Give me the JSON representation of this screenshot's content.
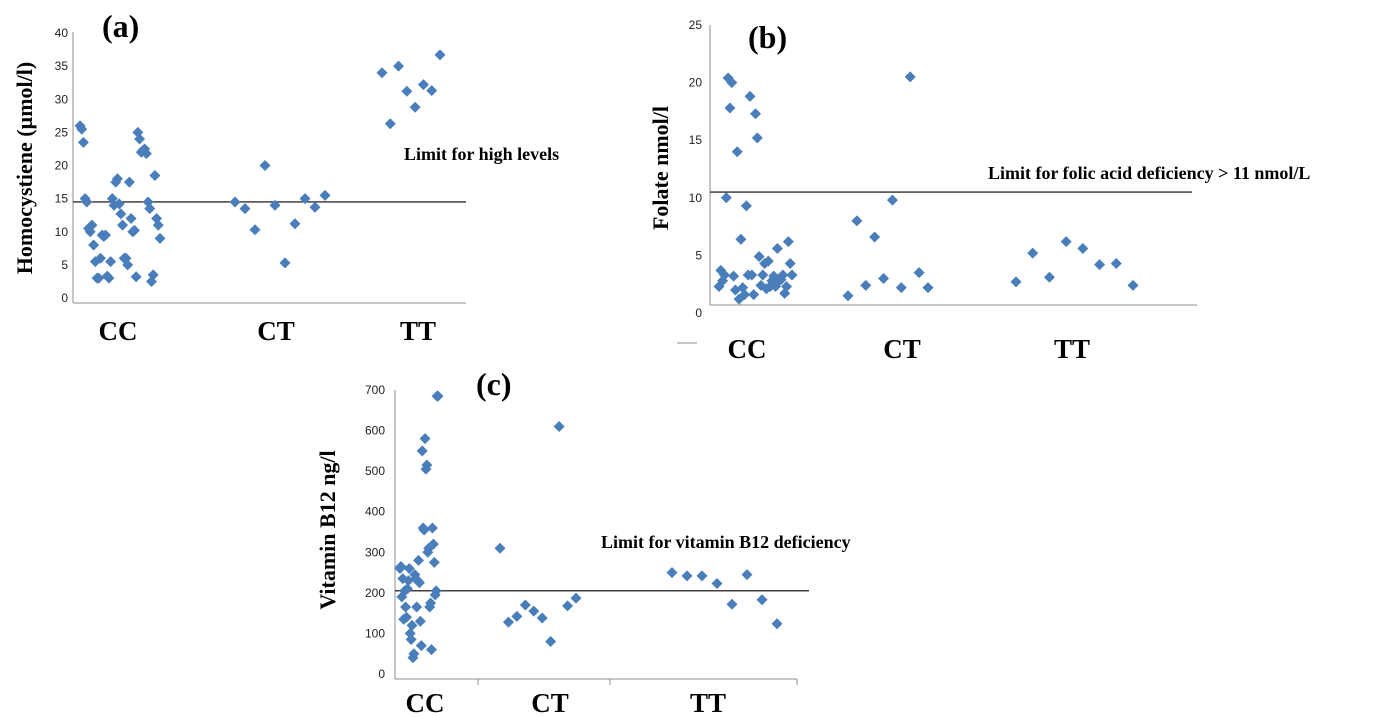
{
  "chart_data": [
    {
      "panel": "(a)",
      "type": "scatter",
      "ylabel": "Homocystiene (µmol/l)",
      "ylim": [
        0,
        40
      ],
      "yticks": [
        "0",
        "5",
        "10",
        "15",
        "20",
        "25",
        "30",
        "35",
        "40"
      ],
      "categories": [
        "CC",
        "CT",
        "TT"
      ],
      "limit": 14.5,
      "annotation": "Limit for high levels",
      "marker_color": "#4a7ebb",
      "points": {
        "CC": [
          26,
          25.5,
          23.5,
          15,
          14.5,
          10.5,
          10,
          11,
          8,
          5.5,
          3,
          3,
          6,
          9.5,
          9.3,
          9.5,
          3.3,
          3,
          5.5,
          15,
          14,
          17.5,
          18,
          14.2,
          12.7,
          11,
          6,
          6,
          5,
          17.5,
          12,
          10,
          10.2,
          3.2,
          25,
          24,
          22,
          22.3,
          22.5,
          21.8,
          14.5,
          13.5,
          2.5,
          3.5,
          18.5,
          12,
          11,
          9
        ],
        "CT": [
          14.5,
          13.5,
          10.3,
          20,
          14,
          5.3,
          11.2,
          15,
          13.7,
          15.5
        ],
        "TT": [
          34,
          26.3,
          35,
          31.2,
          28.8,
          32.2,
          31.3,
          36.7
        ]
      }
    },
    {
      "panel": "(b)",
      "type": "scatter",
      "ylabel": "Folate nmol/l",
      "ylim": [
        0,
        25
      ],
      "yticks": [
        "0",
        "5",
        "10",
        "15",
        "20",
        "25"
      ],
      "categories": [
        "CC",
        "CT",
        "TT"
      ],
      "limit": 10.5,
      "annotation": "Limit for folic acid deficiency > 11 nmol/L",
      "marker_color": "#4a7ebb",
      "points": {
        "CC": [
          2.3,
          3.7,
          2.8,
          3.3,
          10,
          20.4,
          17.8,
          20,
          3.2,
          2,
          14,
          1.2,
          6.4,
          2.2,
          1.6,
          9.3,
          3.3,
          18.8,
          3.3,
          1.6,
          17.3,
          15.2,
          4.9,
          2.4,
          3.3,
          4.3,
          2.1,
          4.5,
          2.3,
          2.8,
          3.2,
          2.3,
          5.6,
          2.8,
          2.9,
          3.3,
          1.7,
          2.3,
          6.2,
          4.3,
          3.3
        ],
        "CT": [
          1.5,
          8,
          2.4,
          6.6,
          3,
          9.8,
          2.2,
          20.5,
          3.5,
          2.2
        ],
        "TT": [
          2.7,
          5.2,
          3.1,
          6.2,
          5.6,
          4.2,
          4.3,
          2.4
        ]
      }
    },
    {
      "panel": "(c)",
      "type": "scatter",
      "ylabel": "Vitamin B12 ng/l",
      "ylim": [
        0,
        700
      ],
      "yticks": [
        "0",
        "100",
        "200",
        "300",
        "400",
        "500",
        "600",
        "700"
      ],
      "categories": [
        "CC",
        "CT",
        "TT"
      ],
      "limit": 205,
      "annotation": "Limit for vitamin B12 deficiency",
      "marker_color": "#4a7ebb",
      "points": {
        "CC": [
          260,
          265,
          190,
          235,
          135,
          205,
          165,
          140,
          210,
          230,
          260,
          100,
          85,
          120,
          40,
          50,
          245,
          235,
          165,
          230,
          280,
          225,
          130,
          70,
          550,
          360,
          355,
          580,
          505,
          515,
          300,
          310,
          165,
          175,
          60,
          360,
          320,
          275,
          195,
          205,
          685,
          685
        ],
        "CT": [
          310,
          128,
          142,
          170,
          155,
          138,
          80,
          610,
          168,
          187
        ],
        "TT": [
          250,
          242,
          242,
          223,
          172,
          245,
          183,
          124
        ]
      }
    }
  ]
}
